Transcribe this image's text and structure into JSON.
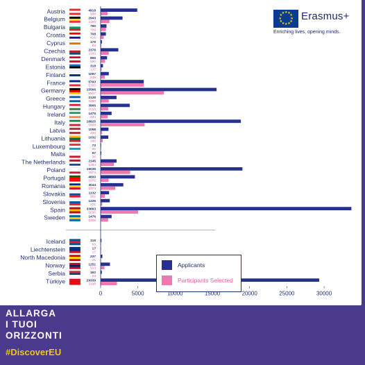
{
  "brand": {
    "name": "Erasmus+",
    "tagline": "Enriching lives, opening minds."
  },
  "campaign": {
    "line1": "ALLARGA",
    "line2": "I TUOI",
    "line3": "ORIZZONTI",
    "hashtag": "#DiscoverEU"
  },
  "colors": {
    "applicants": "#25308f",
    "selected": "#ee79b0",
    "background": "#4a3a8c",
    "hashtag": "#f0c419"
  },
  "chart_data": {
    "type": "bar",
    "orientation": "horizontal",
    "xlim": [
      0,
      34000
    ],
    "x_ticks": [
      "0",
      "5000",
      "10000",
      "15000",
      "20000",
      "25000",
      "30000"
    ],
    "x_tick_values": [
      0,
      5000,
      10000,
      15000,
      20000,
      25000,
      30000
    ],
    "grid": false,
    "legend_position": "bottom-center",
    "categories": [
      "Austria",
      "Belgium",
      "Bulgaria",
      "Croatia",
      "Cyprus",
      "Czechia",
      "Denmark",
      "Estonia",
      "Finland",
      "France",
      "Germany",
      "Greece",
      "Hungary",
      "Ireland",
      "Italy",
      "Latvia",
      "Lithuania",
      "Luxembourg",
      "Malta",
      "The Netherlands",
      "Poland",
      "Portugal",
      "Romania",
      "Slovakia",
      "Slovenia",
      "Spain",
      "Sweden",
      "Iceland",
      "Liechtenstein",
      "North Macedonia",
      "Norway",
      "Serbia",
      "Türkiye"
    ],
    "group_break_after": "Sweden",
    "series": [
      {
        "name": "Applicants",
        "values": [
          4918,
          2943,
          790,
          708,
          175,
          2378,
          866,
          318,
          1097,
          5793,
          15566,
          2135,
          3906,
          1475,
          18825,
          1058,
          1032,
          73,
          97,
          2145,
          19039,
          4600,
          3044,
          1132,
          1226,
          33663,
          1476,
          115,
          17,
          237,
          1251,
          162,
          29339
        ],
        "labels": [
          "4918",
          "2943",
          "790",
          "708",
          "175",
          "2378",
          "866",
          "318",
          "1097",
          "5793",
          "15566",
          "2135",
          "3906",
          "1475",
          "18825",
          "1058",
          "1032",
          "73",
          "97",
          "2145",
          "19039",
          "4600",
          "3044",
          "1132",
          "1226",
          "33663",
          "1476",
          "115",
          "17",
          "237",
          "1251",
          "162",
          "29339"
        ]
      },
      {
        "name": "Participants Selected",
        "values": [
          938,
          1190,
          709,
          416,
          92,
          1100,
          590,
          137,
          548,
          5793,
          8507,
          1099,
          1015,
          934,
          5908,
          200,
          290,
          65,
          35,
          1784,
          3974,
          1076,
          1974,
          561,
          221,
          5036,
          1009,
          65,
          17,
          21,
          513,
          23,
          2198
        ],
        "labels": [
          "938",
          "1190",
          "709",
          "416",
          "92",
          "1100",
          "590",
          "137",
          "548",
          "5793",
          "8507",
          "1099",
          "1015",
          "934",
          "5908",
          "200",
          "290",
          "65",
          "35",
          "1784",
          "3974",
          "1076",
          "1974",
          "561",
          "221",
          "5036",
          "1009",
          "65",
          "17",
          "21",
          "513",
          "23",
          "2198"
        ]
      }
    ],
    "flags": [
      [
        "#ed2939",
        "#ffffff",
        "#ed2939"
      ],
      [
        "#000000",
        "#fdda24",
        "#ef3340"
      ],
      [
        "#ffffff",
        "#00966e",
        "#d62612"
      ],
      [
        "#ff0000",
        "#ffffff",
        "#171796"
      ],
      [
        "#ffffff",
        "#d57800",
        "#ffffff"
      ],
      [
        "#ffffff",
        "#d7141a",
        "#11457e"
      ],
      [
        "#c8102e",
        "#ffffff",
        "#c8102e"
      ],
      [
        "#0072ce",
        "#000000",
        "#ffffff"
      ],
      [
        "#ffffff",
        "#003580",
        "#ffffff"
      ],
      [
        "#002395",
        "#ffffff",
        "#ed2939"
      ],
      [
        "#000000",
        "#dd0000",
        "#ffce00"
      ],
      [
        "#0d5eaf",
        "#ffffff",
        "#0d5eaf"
      ],
      [
        "#ce2939",
        "#ffffff",
        "#477050"
      ],
      [
        "#169b62",
        "#ffffff",
        "#ff883e"
      ],
      [
        "#009246",
        "#ffffff",
        "#ce2b37"
      ],
      [
        "#9e3039",
        "#ffffff",
        "#9e3039"
      ],
      [
        "#fdb913",
        "#006a44",
        "#c1272d"
      ],
      [
        "#ed2939",
        "#ffffff",
        "#00a1de"
      ],
      [
        "#ffffff",
        "#ffffff",
        "#cf142b"
      ],
      [
        "#ae1c28",
        "#ffffff",
        "#21468b"
      ],
      [
        "#ffffff",
        "#ffffff",
        "#dc143c"
      ],
      [
        "#006600",
        "#ff0000",
        "#ff0000"
      ],
      [
        "#002b7f",
        "#fcd116",
        "#ce1126"
      ],
      [
        "#ffffff",
        "#0b4ea2",
        "#ee1c25"
      ],
      [
        "#ffffff",
        "#005da4",
        "#ed1c24"
      ],
      [
        "#aa151b",
        "#f1bf00",
        "#aa151b"
      ],
      [
        "#006aa7",
        "#fecc00",
        "#006aa7"
      ],
      [
        "#02529c",
        "#dc1e35",
        "#02529c"
      ],
      [
        "#002b7f",
        "#002b7f",
        "#ce1126"
      ],
      [
        "#d20000",
        "#ffe600",
        "#d20000"
      ],
      [
        "#ba0c2f",
        "#00205b",
        "#ba0c2f"
      ],
      [
        "#c6363c",
        "#0c4076",
        "#ffffff"
      ],
      [
        "#e30a17",
        "#e30a17",
        "#e30a17"
      ]
    ]
  }
}
